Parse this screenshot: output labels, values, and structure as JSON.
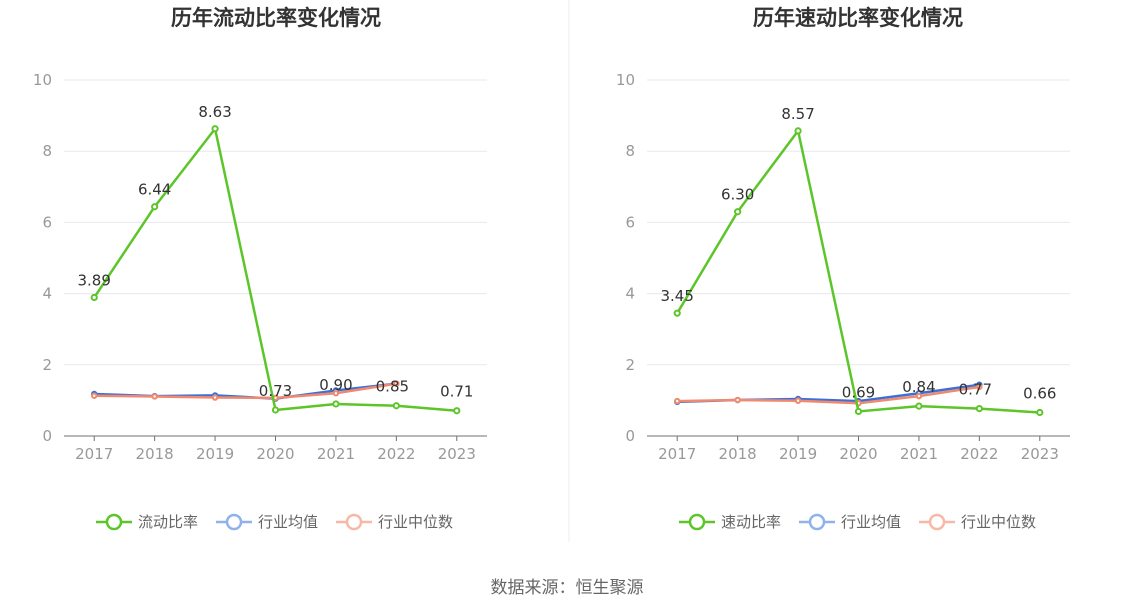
{
  "source_label": "数据来源：恒生聚源",
  "colors": {
    "main": "#5cc52a",
    "avg": "#3b6fd9",
    "avg_legend": "#8fb1ec",
    "median": "#f08a6e",
    "median_legend": "#f7b9a6"
  },
  "chart_data": [
    {
      "type": "line",
      "title": "历年流动比率变化情况",
      "x": [
        "2017",
        "2018",
        "2019",
        "2020",
        "2021",
        "2022",
        "2023"
      ],
      "ylim": [
        0,
        10
      ],
      "yticks": [
        "0",
        "2",
        "4",
        "6",
        "8",
        "10"
      ],
      "grid": true,
      "legend": "bottom",
      "series": [
        {
          "name": "流动比率",
          "key": "main",
          "values": [
            3.89,
            6.44,
            8.63,
            0.73,
            0.9,
            0.85,
            0.71
          ],
          "labels": [
            "3.89",
            "6.44",
            "8.63",
            "0.73",
            "0.90",
            "0.85",
            "0.71"
          ]
        },
        {
          "name": "行业均值",
          "key": "avg",
          "values": [
            1.18,
            1.12,
            1.14,
            1.05,
            1.28,
            1.47,
            null
          ]
        },
        {
          "name": "行业中位数",
          "key": "median",
          "values": [
            1.13,
            1.11,
            1.08,
            1.07,
            1.2,
            1.47,
            null
          ]
        }
      ]
    },
    {
      "type": "line",
      "title": "历年速动比率变化情况",
      "x": [
        "2017",
        "2018",
        "2019",
        "2020",
        "2021",
        "2022",
        "2023"
      ],
      "ylim": [
        0,
        10
      ],
      "yticks": [
        "0",
        "2",
        "4",
        "6",
        "8",
        "10"
      ],
      "grid": true,
      "legend": "bottom",
      "series": [
        {
          "name": "速动比率",
          "key": "main",
          "values": [
            3.45,
            6.3,
            8.57,
            0.69,
            0.84,
            0.77,
            0.66
          ],
          "labels": [
            "3.45",
            "6.30",
            "8.57",
            "0.69",
            "0.84",
            "0.77",
            "0.66"
          ]
        },
        {
          "name": "行业均值",
          "key": "avg",
          "values": [
            0.96,
            1.01,
            1.04,
            0.98,
            1.2,
            1.44,
            null
          ]
        },
        {
          "name": "行业中位数",
          "key": "median",
          "values": [
            0.98,
            1.01,
            0.99,
            0.92,
            1.12,
            1.38,
            null
          ]
        }
      ]
    }
  ]
}
